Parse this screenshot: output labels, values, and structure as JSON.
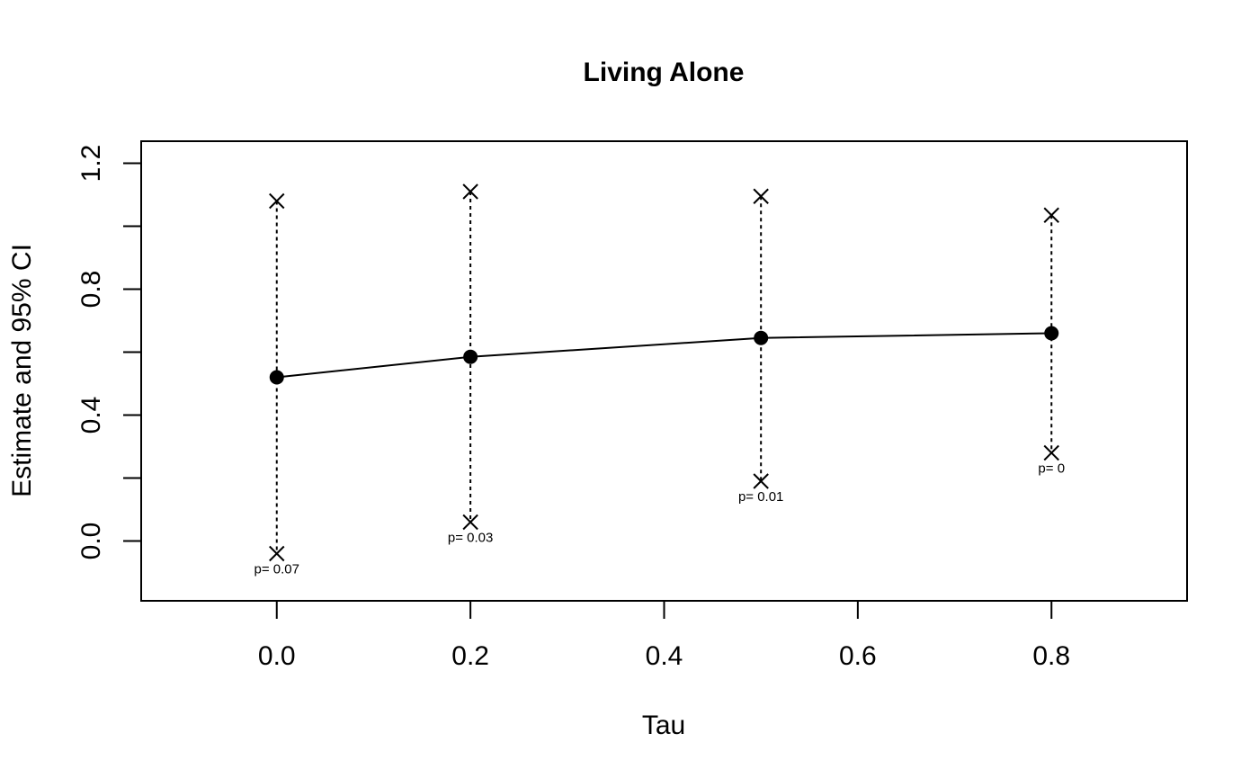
{
  "chart_data": {
    "type": "line",
    "title": "Living Alone",
    "xlabel": "Tau",
    "ylabel": "Estimate and 95% CI",
    "xlim": [
      -0.14,
      0.94
    ],
    "ylim": [
      -0.19,
      1.27
    ],
    "xticks": [
      {
        "value": 0.0,
        "label": "0.0"
      },
      {
        "value": 0.2,
        "label": "0.2"
      },
      {
        "value": 0.4,
        "label": "0.4"
      },
      {
        "value": 0.6,
        "label": "0.6"
      },
      {
        "value": 0.8,
        "label": "0.8"
      }
    ],
    "yticks": [
      {
        "value": 0.0,
        "label": "0.0",
        "labeled": true
      },
      {
        "value": 0.2,
        "label": "",
        "labeled": false
      },
      {
        "value": 0.4,
        "label": "0.4",
        "labeled": true
      },
      {
        "value": 0.6,
        "label": "",
        "labeled": false
      },
      {
        "value": 0.8,
        "label": "0.8",
        "labeled": true
      },
      {
        "value": 1.0,
        "label": "",
        "labeled": false
      },
      {
        "value": 1.2,
        "label": "1.2",
        "labeled": true
      }
    ],
    "grid": false,
    "points": [
      {
        "x": 0.0,
        "estimate": 0.52,
        "lower": -0.04,
        "upper": 1.08,
        "p_label": "p= 0.07"
      },
      {
        "x": 0.2,
        "estimate": 0.585,
        "lower": 0.06,
        "upper": 1.11,
        "p_label": "p= 0.03"
      },
      {
        "x": 0.5,
        "estimate": 0.645,
        "lower": 0.19,
        "upper": 1.095,
        "p_label": "p= 0.01"
      },
      {
        "x": 0.8,
        "estimate": 0.66,
        "lower": 0.28,
        "upper": 1.035,
        "p_label": "p= 0"
      }
    ]
  }
}
